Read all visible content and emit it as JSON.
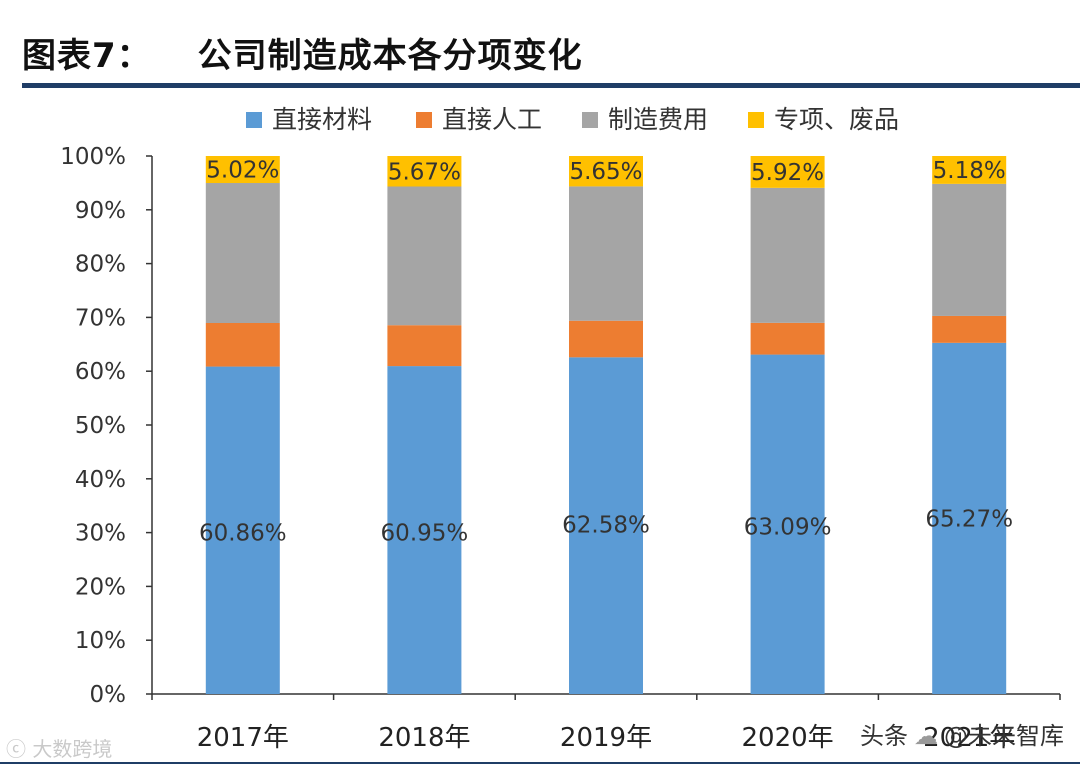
{
  "title": {
    "label": "图表7：",
    "text": "公司制造成本各分项变化"
  },
  "watermarks": {
    "left": "ⓒ 大数跨境",
    "right_prefix": "头条",
    "right_handle": "@未来智库"
  },
  "chart_data": {
    "type": "stacked-bar-100",
    "categories": [
      "2017年",
      "2018年",
      "2019年",
      "2020年",
      "2021年"
    ],
    "ylim": [
      0,
      100
    ],
    "yticks": [
      "0%",
      "10%",
      "20%",
      "30%",
      "40%",
      "50%",
      "60%",
      "70%",
      "80%",
      "90%",
      "100%"
    ],
    "legend_position": "top",
    "series": [
      {
        "name": "直接材料",
        "color": "#5b9bd5",
        "values": [
          60.86,
          60.95,
          62.58,
          63.09,
          65.27
        ],
        "labels": [
          "60.86%",
          "60.95%",
          "62.58%",
          "63.09%",
          "65.27%"
        ]
      },
      {
        "name": "直接人工",
        "color": "#ed7d31",
        "values": [
          8.1,
          7.6,
          6.8,
          5.9,
          5.0
        ]
      },
      {
        "name": "制造费用",
        "color": "#a5a5a5",
        "values": [
          26.02,
          25.78,
          24.97,
          25.09,
          24.55
        ]
      },
      {
        "name": "专项、废品",
        "color": "#ffc000",
        "values": [
          5.02,
          5.67,
          5.65,
          5.92,
          5.18
        ],
        "labels": [
          "5.02%",
          "5.67%",
          "5.65%",
          "5.92%",
          "5.18%"
        ]
      }
    ]
  }
}
